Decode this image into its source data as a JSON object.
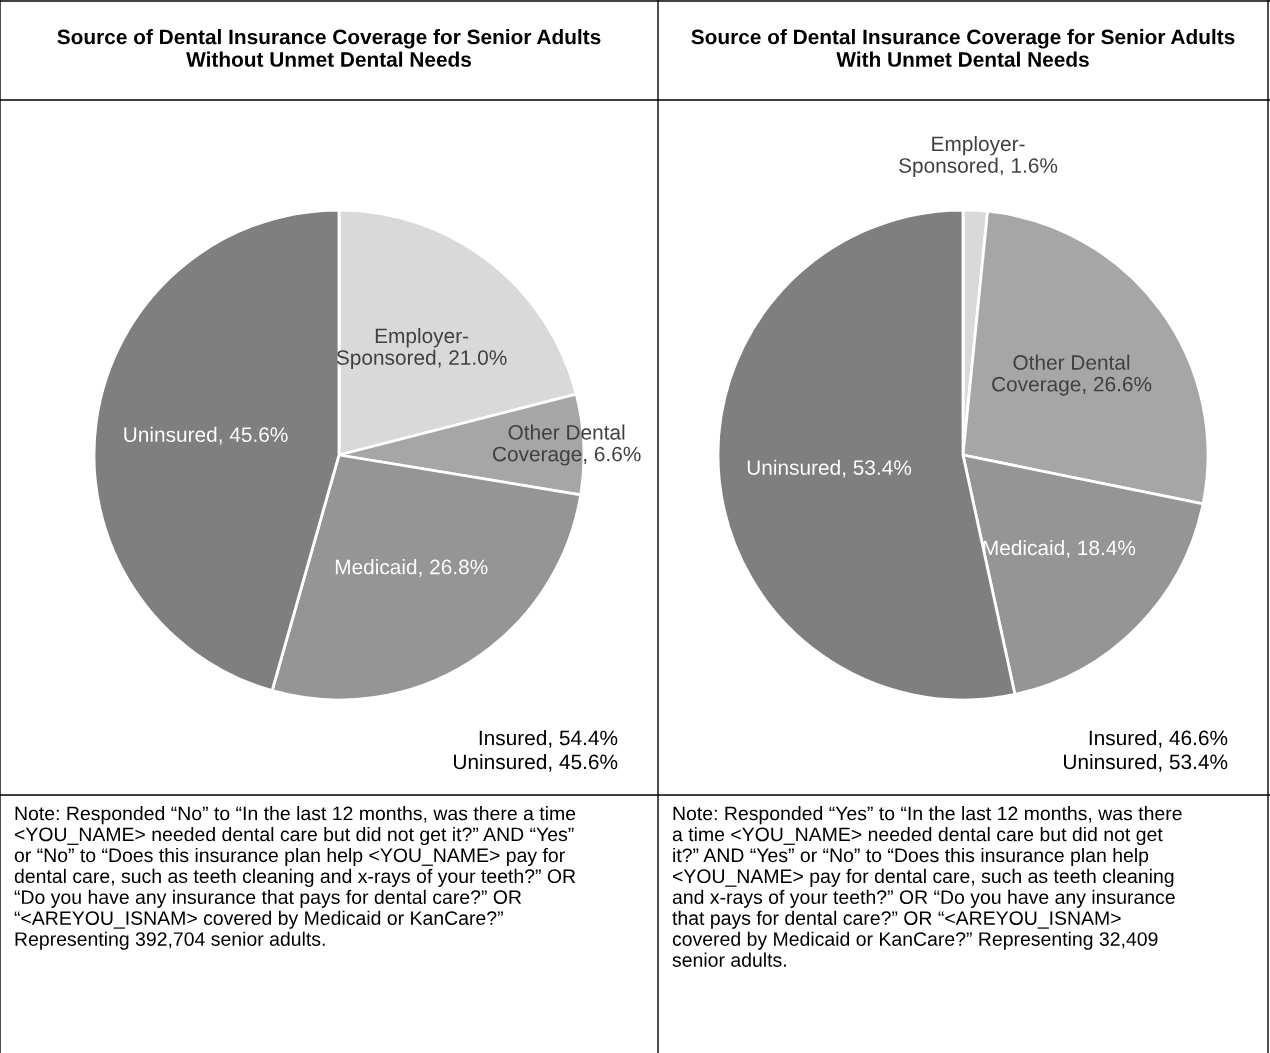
{
  "chart_data": [
    {
      "type": "pie",
      "title": "Source of Dental Insurance Coverage for Senior Adults Without Unmet Dental Needs",
      "categories": [
        "Employer-Sponsored",
        "Other Dental Coverage",
        "Medicaid",
        "Uninsured"
      ],
      "values": [
        21.0,
        6.6,
        26.8,
        45.6
      ],
      "value_labels": [
        "21.0%",
        "6.6%",
        "26.8%",
        "45.6%"
      ],
      "colors": [
        "#d9d9d9",
        "#a6a6a6",
        "#959595",
        "#7f7f7f"
      ],
      "annotations": [
        "Insured, 54.4%\nUninsured, 45.6%",
        "Note: Responded “No” to “In the last 12 months, was there a time <YOU_NAME> needed dental care but did not get it?” AND “Yes” or “No” to “Does this insurance plan help <YOU_NAME> pay for dental care, such as teeth cleaning and x-rays of your teeth?” OR “Do you have any insurance that pays for dental care?” OR “<AREYOU_ISNAM> covered by Medicaid or KanCare?” Representing 392,704 senior adults."
      ]
    },
    {
      "type": "pie",
      "title": "Source of Dental Insurance Coverage for Senior Adults With Unmet Dental Needs",
      "categories": [
        "Employer-Sponsored",
        "Other Dental Coverage",
        "Medicaid",
        "Uninsured"
      ],
      "values": [
        1.6,
        26.6,
        18.4,
        53.4
      ],
      "value_labels": [
        "1.6%",
        "26.6%",
        "18.4%",
        "53.4%"
      ],
      "colors": [
        "#d9d9d9",
        "#a6a6a6",
        "#959595",
        "#7f7f7f"
      ],
      "annotations": [
        "Insured, 46.6%\nUninsured, 53.4%",
        "Note: Responded “Yes” to “In the last 12 months, was there a time <YOU_NAME> needed dental care but did not get it?” AND “Yes” or “No” to “Does this insurance plan help <YOU_NAME> pay for dental care, such as teeth cleaning and x-rays of your teeth?” OR “Do you have any insurance that pays for dental care?” OR “<AREYOU_ISNAM> covered by Medicaid or KanCare?” Representing 32,409 senior adults."
      ]
    }
  ]
}
